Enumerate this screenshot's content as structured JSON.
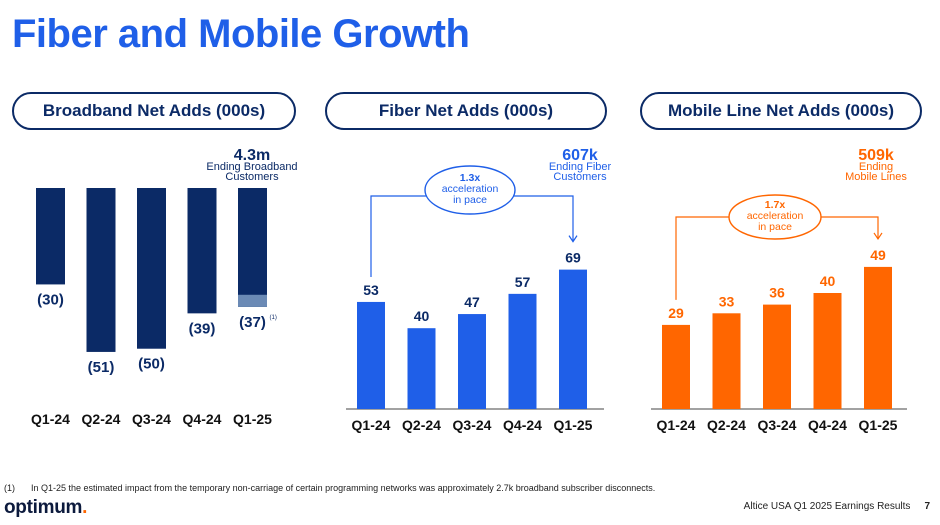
{
  "page": {
    "title": "Fiber and Mobile Growth",
    "footnote_num": "(1)",
    "footnote": "In Q1-25 the estimated impact from the temporary non-carriage of certain programming networks was approximately 2.7k broadband subscriber disconnects.",
    "logo": "optimum",
    "logo_dot": ".",
    "source": "Altice USA Q1 2025 Earnings Results",
    "page_number": "7"
  },
  "colors": {
    "navy": "#0b2a66",
    "navy_light": "#6b8ab5",
    "blue": "#1f5fe8",
    "orange": "#ff6600",
    "axis": "#444444"
  },
  "chart_data": [
    {
      "type": "bar",
      "title": "Broadband Net Adds (000s)",
      "categories": [
        "Q1-24",
        "Q2-24",
        "Q3-24",
        "Q4-24",
        "Q1-25"
      ],
      "values": [
        -30,
        -51,
        -50,
        -39,
        -37
      ],
      "labels": [
        "(30)",
        "(51)",
        "(50)",
        "(39)",
        "(37)"
      ],
      "footnote_ref": {
        "index": 4,
        "text": "(1)",
        "impact": -2.7
      },
      "highlight": {
        "value": "4.3m",
        "text_lines": [
          "Ending Broadband",
          "Customers"
        ]
      },
      "ylim": [
        -56,
        0
      ],
      "color": "#0b2a66"
    },
    {
      "type": "bar",
      "title": "Fiber Net Adds (000s)",
      "categories": [
        "Q1-24",
        "Q2-24",
        "Q3-24",
        "Q4-24",
        "Q1-25"
      ],
      "values": [
        53,
        40,
        47,
        57,
        69
      ],
      "labels": [
        "53",
        "40",
        "47",
        "57",
        "69"
      ],
      "highlight": {
        "value": "607k",
        "text_lines": [
          "Ending Fiber",
          "Customers"
        ]
      },
      "annotation": {
        "lines": [
          "1.3x",
          "acceleration",
          "in pace"
        ],
        "from": 0,
        "to": 4
      },
      "ylim": [
        0,
        75
      ],
      "color": "#1f5fe8"
    },
    {
      "type": "bar",
      "title": "Mobile Line Net Adds (000s)",
      "categories": [
        "Q1-24",
        "Q2-24",
        "Q3-24",
        "Q4-24",
        "Q1-25"
      ],
      "values": [
        29,
        33,
        36,
        40,
        49
      ],
      "labels": [
        "29",
        "33",
        "36",
        "40",
        "49"
      ],
      "highlight": {
        "value": "509k",
        "text_lines": [
          "Ending",
          "Mobile Lines"
        ]
      },
      "annotation": {
        "lines": [
          "1.7x",
          "acceleration",
          "in pace"
        ],
        "from": 0,
        "to": 4
      },
      "ylim": [
        0,
        57
      ],
      "color": "#ff6600"
    }
  ]
}
